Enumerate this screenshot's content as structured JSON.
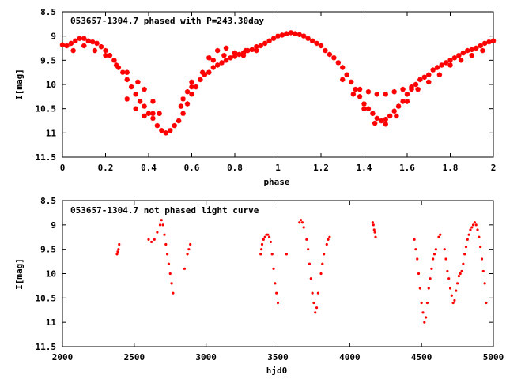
{
  "chart_data": [
    {
      "type": "scatter",
      "title": "053657-1304.7 phased with P=243.30day",
      "xlabel": "phase",
      "ylabel": "I[mag]",
      "xlim": [
        0,
        2
      ],
      "ylim": [
        11.5,
        8.5
      ],
      "y_inverted": true,
      "x_ticks": [
        "0",
        "0.2",
        "0.4",
        "0.6",
        "0.8",
        "1",
        "1.2",
        "1.4",
        "1.6",
        "1.8",
        "2"
      ],
      "y_ticks": [
        "8.5",
        "9",
        "9.5",
        "10",
        "10.5",
        "11",
        "11.5"
      ],
      "grid": false,
      "color": "#ff0000",
      "marker": "star",
      "series": [
        {
          "points": [
            [
              0.0,
              9.18
            ],
            [
              0.02,
              9.2
            ],
            [
              0.04,
              9.15
            ],
            [
              0.06,
              9.1
            ],
            [
              0.08,
              9.05
            ],
            [
              0.1,
              9.05
            ],
            [
              0.12,
              9.1
            ],
            [
              0.14,
              9.12
            ],
            [
              0.16,
              9.15
            ],
            [
              0.18,
              9.22
            ],
            [
              0.2,
              9.3
            ],
            [
              0.22,
              9.4
            ],
            [
              0.24,
              9.5
            ],
            [
              0.26,
              9.65
            ],
            [
              0.28,
              9.75
            ],
            [
              0.3,
              9.9
            ],
            [
              0.32,
              10.05
            ],
            [
              0.34,
              10.2
            ],
            [
              0.36,
              10.35
            ],
            [
              0.38,
              10.45
            ],
            [
              0.4,
              10.6
            ],
            [
              0.42,
              10.7
            ],
            [
              0.44,
              10.85
            ],
            [
              0.46,
              10.95
            ],
            [
              0.48,
              11.0
            ],
            [
              0.5,
              10.95
            ],
            [
              0.52,
              10.85
            ],
            [
              0.54,
              10.75
            ],
            [
              0.56,
              10.6
            ],
            [
              0.58,
              10.4
            ],
            [
              0.6,
              10.2
            ],
            [
              0.62,
              10.05
            ],
            [
              0.64,
              9.9
            ],
            [
              0.66,
              9.8
            ],
            [
              0.68,
              9.75
            ],
            [
              0.7,
              9.65
            ],
            [
              0.72,
              9.6
            ],
            [
              0.74,
              9.55
            ],
            [
              0.76,
              9.5
            ],
            [
              0.78,
              9.45
            ],
            [
              0.8,
              9.42
            ],
            [
              0.82,
              9.38
            ],
            [
              0.84,
              9.35
            ],
            [
              0.86,
              9.3
            ],
            [
              0.88,
              9.28
            ],
            [
              0.9,
              9.22
            ],
            [
              0.92,
              9.2
            ],
            [
              0.94,
              9.15
            ],
            [
              0.96,
              9.1
            ],
            [
              0.98,
              9.05
            ],
            [
              1.0,
              9.0
            ],
            [
              1.02,
              8.98
            ],
            [
              1.04,
              8.95
            ],
            [
              1.06,
              8.93
            ],
            [
              1.08,
              8.95
            ],
            [
              1.1,
              8.97
            ],
            [
              1.12,
              9.0
            ],
            [
              1.14,
              9.05
            ],
            [
              1.16,
              9.1
            ],
            [
              1.18,
              9.15
            ],
            [
              1.2,
              9.2
            ],
            [
              1.22,
              9.3
            ],
            [
              1.24,
              9.38
            ],
            [
              1.26,
              9.45
            ],
            [
              1.28,
              9.55
            ],
            [
              1.3,
              9.65
            ],
            [
              1.32,
              9.8
            ],
            [
              1.34,
              9.95
            ],
            [
              1.36,
              10.1
            ],
            [
              1.38,
              10.25
            ],
            [
              1.4,
              10.4
            ],
            [
              1.42,
              10.5
            ],
            [
              1.44,
              10.6
            ],
            [
              1.46,
              10.7
            ],
            [
              1.48,
              10.75
            ],
            [
              1.5,
              10.72
            ],
            [
              1.52,
              10.65
            ],
            [
              1.54,
              10.55
            ],
            [
              1.56,
              10.45
            ],
            [
              1.58,
              10.35
            ],
            [
              1.6,
              10.2
            ],
            [
              1.62,
              10.1
            ],
            [
              1.64,
              10.0
            ],
            [
              1.66,
              9.9
            ],
            [
              1.68,
              9.85
            ],
            [
              1.7,
              9.8
            ],
            [
              1.72,
              9.7
            ],
            [
              1.74,
              9.65
            ],
            [
              1.76,
              9.6
            ],
            [
              1.78,
              9.55
            ],
            [
              1.8,
              9.5
            ],
            [
              1.82,
              9.45
            ],
            [
              1.84,
              9.4
            ],
            [
              1.86,
              9.35
            ],
            [
              1.88,
              9.3
            ],
            [
              1.9,
              9.28
            ],
            [
              1.92,
              9.25
            ],
            [
              1.94,
              9.2
            ],
            [
              1.96,
              9.15
            ],
            [
              1.98,
              9.12
            ],
            [
              2.0,
              9.1
            ],
            [
              0.05,
              9.3
            ],
            [
              0.1,
              9.2
            ],
            [
              0.15,
              9.3
            ],
            [
              0.2,
              9.4
            ],
            [
              0.25,
              9.6
            ],
            [
              0.3,
              9.75
            ],
            [
              0.35,
              9.95
            ],
            [
              0.38,
              10.1
            ],
            [
              0.42,
              10.35
            ],
            [
              0.45,
              10.6
            ],
            [
              0.55,
              10.45
            ],
            [
              0.6,
              10.05
            ],
            [
              0.65,
              9.75
            ],
            [
              0.7,
              9.5
            ],
            [
              0.75,
              9.4
            ],
            [
              0.8,
              9.35
            ],
            [
              0.85,
              9.3
            ],
            [
              0.9,
              9.3
            ],
            [
              1.3,
              9.9
            ],
            [
              1.35,
              10.2
            ],
            [
              1.4,
              10.5
            ],
            [
              1.45,
              10.8
            ],
            [
              1.5,
              10.82
            ],
            [
              1.55,
              10.65
            ],
            [
              1.6,
              10.35
            ],
            [
              1.65,
              10.1
            ],
            [
              1.7,
              9.95
            ],
            [
              1.75,
              9.8
            ],
            [
              1.8,
              9.6
            ],
            [
              1.85,
              9.5
            ],
            [
              1.9,
              9.4
            ],
            [
              1.95,
              9.3
            ],
            [
              1.38,
              10.1
            ],
            [
              1.42,
              10.15
            ],
            [
              1.46,
              10.2
            ],
            [
              1.5,
              10.2
            ],
            [
              1.54,
              10.15
            ],
            [
              1.58,
              10.1
            ],
            [
              1.62,
              10.05
            ],
            [
              0.3,
              10.3
            ],
            [
              0.34,
              10.5
            ],
            [
              0.38,
              10.65
            ],
            [
              0.42,
              10.6
            ],
            [
              0.56,
              10.3
            ],
            [
              0.58,
              10.15
            ],
            [
              0.6,
              9.95
            ],
            [
              0.68,
              9.45
            ],
            [
              0.72,
              9.3
            ],
            [
              0.76,
              9.25
            ],
            [
              0.8,
              9.35
            ],
            [
              0.84,
              9.4
            ]
          ]
        }
      ]
    },
    {
      "type": "scatter",
      "title": "053657-1304.7 not phased light curve",
      "xlabel": "hjd0",
      "ylabel": "I[mag]",
      "xlim": [
        2000,
        5000
      ],
      "ylim": [
        11.5,
        8.5
      ],
      "y_inverted": true,
      "x_ticks": [
        "2000",
        "2500",
        "3000",
        "3500",
        "4000",
        "4500",
        "5000"
      ],
      "y_ticks": [
        "8.5",
        "9",
        "9.5",
        "10",
        "10.5",
        "11",
        "11.5"
      ],
      "grid": false,
      "color": "#ff0000",
      "marker": "dot",
      "series": [
        {
          "points": [
            [
              2380,
              9.6
            ],
            [
              2385,
              9.55
            ],
            [
              2390,
              9.5
            ],
            [
              2395,
              9.4
            ],
            [
              2600,
              9.3
            ],
            [
              2620,
              9.35
            ],
            [
              2640,
              9.3
            ],
            [
              2660,
              9.15
            ],
            [
              2680,
              9.0
            ],
            [
              2690,
              8.9
            ],
            [
              2700,
              9.0
            ],
            [
              2710,
              9.2
            ],
            [
              2720,
              9.4
            ],
            [
              2730,
              9.6
            ],
            [
              2740,
              9.8
            ],
            [
              2750,
              10.0
            ],
            [
              2760,
              10.2
            ],
            [
              2770,
              10.4
            ],
            [
              2850,
              9.9
            ],
            [
              2870,
              9.6
            ],
            [
              2880,
              9.5
            ],
            [
              2890,
              9.4
            ],
            [
              3380,
              9.6
            ],
            [
              3385,
              9.5
            ],
            [
              3390,
              9.4
            ],
            [
              3400,
              9.3
            ],
            [
              3410,
              9.25
            ],
            [
              3420,
              9.2
            ],
            [
              3430,
              9.2
            ],
            [
              3440,
              9.25
            ],
            [
              3450,
              9.35
            ],
            [
              3460,
              9.6
            ],
            [
              3470,
              9.9
            ],
            [
              3480,
              10.2
            ],
            [
              3490,
              10.4
            ],
            [
              3500,
              10.6
            ],
            [
              3560,
              9.6
            ],
            [
              3650,
              8.95
            ],
            [
              3660,
              8.9
            ],
            [
              3670,
              8.95
            ],
            [
              3680,
              9.05
            ],
            [
              3700,
              9.3
            ],
            [
              3710,
              9.5
            ],
            [
              3720,
              9.8
            ],
            [
              3730,
              10.1
            ],
            [
              3740,
              10.4
            ],
            [
              3750,
              10.6
            ],
            [
              3760,
              10.8
            ],
            [
              3770,
              10.7
            ],
            [
              3780,
              10.4
            ],
            [
              3800,
              10.0
            ],
            [
              3810,
              9.8
            ],
            [
              3820,
              9.6
            ],
            [
              3840,
              9.4
            ],
            [
              3850,
              9.3
            ],
            [
              3860,
              9.25
            ],
            [
              4160,
              8.95
            ],
            [
              4165,
              9.0
            ],
            [
              4170,
              9.1
            ],
            [
              4175,
              9.15
            ],
            [
              4180,
              9.25
            ],
            [
              4450,
              9.3
            ],
            [
              4460,
              9.5
            ],
            [
              4470,
              9.7
            ],
            [
              4480,
              10.0
            ],
            [
              4490,
              10.3
            ],
            [
              4500,
              10.6
            ],
            [
              4510,
              10.8
            ],
            [
              4520,
              11.0
            ],
            [
              4530,
              10.9
            ],
            [
              4540,
              10.6
            ],
            [
              4550,
              10.3
            ],
            [
              4560,
              10.1
            ],
            [
              4570,
              9.9
            ],
            [
              4580,
              9.7
            ],
            [
              4590,
              9.6
            ],
            [
              4600,
              9.5
            ],
            [
              4620,
              9.25
            ],
            [
              4630,
              9.2
            ],
            [
              4660,
              9.5
            ],
            [
              4670,
              9.7
            ],
            [
              4680,
              9.95
            ],
            [
              4690,
              10.1
            ],
            [
              4700,
              10.3
            ],
            [
              4710,
              10.45
            ],
            [
              4720,
              10.6
            ],
            [
              4730,
              10.55
            ],
            [
              4740,
              10.35
            ],
            [
              4750,
              10.2
            ],
            [
              4760,
              10.05
            ],
            [
              4770,
              10.0
            ],
            [
              4780,
              9.95
            ],
            [
              4790,
              9.8
            ],
            [
              4800,
              9.6
            ],
            [
              4810,
              9.45
            ],
            [
              4820,
              9.3
            ],
            [
              4830,
              9.2
            ],
            [
              4840,
              9.1
            ],
            [
              4850,
              9.05
            ],
            [
              4860,
              9.0
            ],
            [
              4870,
              8.95
            ],
            [
              4880,
              9.0
            ],
            [
              4890,
              9.1
            ],
            [
              4900,
              9.25
            ],
            [
              4910,
              9.45
            ],
            [
              4920,
              9.7
            ],
            [
              4930,
              9.95
            ],
            [
              4940,
              10.2
            ],
            [
              4950,
              10.6
            ]
          ]
        }
      ]
    }
  ]
}
